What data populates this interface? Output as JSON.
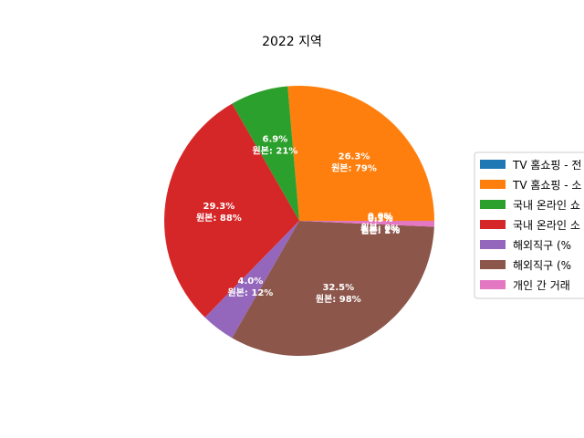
{
  "chart_data": {
    "type": "pie",
    "title": "2022 지역",
    "slices": [
      {
        "name": "TV 홈쇼핑 - 전",
        "percent": 0.0,
        "count": 0,
        "pct_label": "0.0%",
        "raw_label": "원본: 0%",
        "color": "#1f77b4"
      },
      {
        "name": "TV 홈쇼핑 - 소",
        "percent": 26.3,
        "count": 79,
        "pct_label": "26.3%",
        "raw_label": "원본: 79%",
        "color": "#ff7f0e"
      },
      {
        "name": "국내 온라인 쇼",
        "percent": 6.9,
        "count": 21,
        "pct_label": "6.9%",
        "raw_label": "원본: 21%",
        "color": "#2ca02c"
      },
      {
        "name": "국내 온라인 소",
        "percent": 29.3,
        "count": 88,
        "pct_label": "29.3%",
        "raw_label": "원본: 88%",
        "color": "#d62728"
      },
      {
        "name": "해외직구 (%",
        "percent": 4.0,
        "count": 12,
        "pct_label": "4.0%",
        "raw_label": "원본: 12%",
        "color": "#9467bd"
      },
      {
        "name": "해외직구 (%",
        "percent": 32.5,
        "count": 98,
        "pct_label": "32.5%",
        "raw_label": "원본: 98%",
        "color": "#8c564b"
      },
      {
        "name": "개인 간 거래",
        "percent": 0.7,
        "count": 2,
        "pct_label": "0.7%",
        "raw_label": "원본: 2%",
        "color": "#e377c2"
      }
    ],
    "extra_labels": [
      {
        "pct_label": "0.3%",
        "raw_label": "원본: 1%"
      }
    ],
    "legend_position": "right"
  }
}
